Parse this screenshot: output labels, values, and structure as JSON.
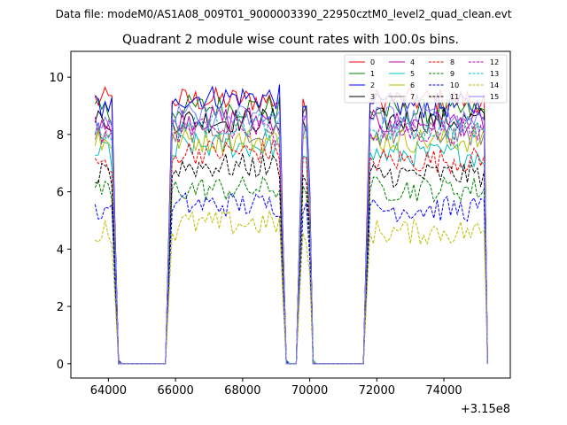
{
  "suptitle": "Data file: modeM0/AS1A08_009T01_9000003390_22950cztM0_level2_quad_clean.evt",
  "chart_data": {
    "type": "line",
    "title": "Quadrant 2 module wise count rates with 100.0s bins.",
    "xlabel": "",
    "ylabel": "",
    "x_offset_label": "+3.15e8",
    "xlim": [
      62880,
      75980
    ],
    "ylim": [
      -0.5,
      10.9
    ],
    "x_ticks": [
      64000,
      66000,
      68000,
      70000,
      72000,
      74000
    ],
    "y_ticks": [
      0,
      2,
      4,
      6,
      8,
      10
    ],
    "grid": false,
    "legend_position": "top-right",
    "time_segments": [
      {
        "start": 63600,
        "end": 64100,
        "type": "on"
      },
      {
        "start": 64100,
        "end": 64300,
        "type": "fall"
      },
      {
        "start": 64300,
        "end": 65700,
        "type": "off"
      },
      {
        "start": 65700,
        "end": 65900,
        "type": "rise"
      },
      {
        "start": 65900,
        "end": 69100,
        "type": "on"
      },
      {
        "start": 69100,
        "end": 69300,
        "type": "fall"
      },
      {
        "start": 69300,
        "end": 69600,
        "type": "off"
      },
      {
        "start": 69600,
        "end": 69800,
        "type": "rise"
      },
      {
        "start": 69800,
        "end": 69950,
        "type": "on"
      },
      {
        "start": 69950,
        "end": 70100,
        "type": "fall"
      },
      {
        "start": 70100,
        "end": 71600,
        "type": "off"
      },
      {
        "start": 71600,
        "end": 71800,
        "type": "rise"
      },
      {
        "start": 71800,
        "end": 75200,
        "type": "on"
      },
      {
        "start": 75200,
        "end": 75300,
        "type": "fall"
      }
    ],
    "series": [
      {
        "name": "0",
        "color": "#ff0000",
        "dash": "solid",
        "level": 9.2
      },
      {
        "name": "1",
        "color": "#008000",
        "dash": "solid",
        "level": 8.8
      },
      {
        "name": "2",
        "color": "#0000ff",
        "dash": "solid",
        "level": 9.0
      },
      {
        "name": "3",
        "color": "#000000",
        "dash": "solid",
        "level": 8.5
      },
      {
        "name": "4",
        "color": "#bf00bf",
        "dash": "solid",
        "level": 8.4
      },
      {
        "name": "5",
        "color": "#00bfbf",
        "dash": "solid",
        "level": 7.3
      },
      {
        "name": "6",
        "color": "#bfbf00",
        "dash": "solid",
        "level": 7.8
      },
      {
        "name": "7",
        "color": "#808080",
        "dash": "solid",
        "level": 8.0
      },
      {
        "name": "8",
        "color": "#ff0000",
        "dash": "dashed",
        "level": 7.1
      },
      {
        "name": "9",
        "color": "#008000",
        "dash": "dashed",
        "level": 6.1
      },
      {
        "name": "10",
        "color": "#0000ff",
        "dash": "dashed",
        "level": 5.4
      },
      {
        "name": "11",
        "color": "#000000",
        "dash": "dashed",
        "level": 6.6
      },
      {
        "name": "12",
        "color": "#bf00bf",
        "dash": "dashed",
        "level": 8.1
      },
      {
        "name": "13",
        "color": "#00bfbf",
        "dash": "dashed",
        "level": 8.2
      },
      {
        "name": "14",
        "color": "#bfbf00",
        "dash": "dashed",
        "level": 4.6
      },
      {
        "name": "15",
        "color": "#8080ff",
        "dash": "solid",
        "level": 8.6
      }
    ]
  }
}
